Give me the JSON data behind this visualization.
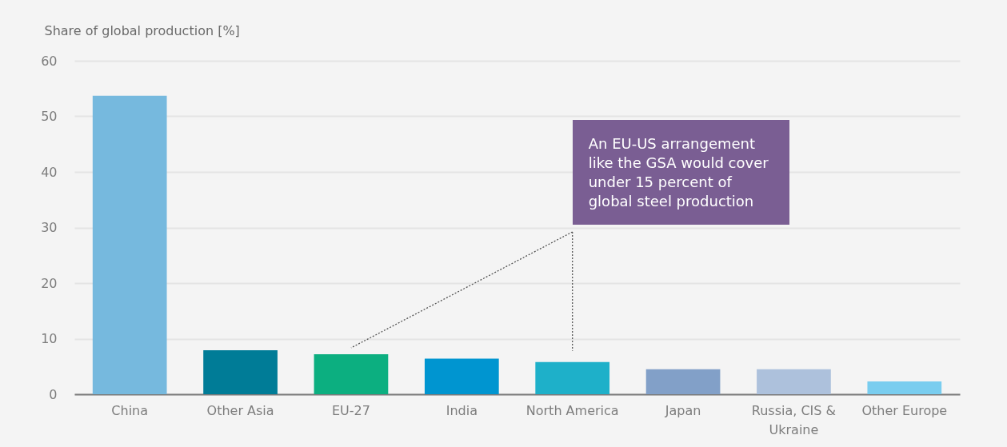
{
  "chart_data": {
    "type": "bar",
    "ylabel": "Share of global production [%]",
    "categories": [
      "China",
      "Other Asia",
      "EU-27",
      "India",
      "North America",
      "Japan",
      "Russia, CIS & Ukraine",
      "Other Europe"
    ],
    "values": [
      53.7,
      7.9,
      7.2,
      6.4,
      5.8,
      4.5,
      4.5,
      2.3
    ],
    "colors": [
      "#76b9de",
      "#007c97",
      "#0caf80",
      "#0095d0",
      "#1eb0c9",
      "#82a0c8",
      "#adc1dc",
      "#79cdef"
    ],
    "ylim": [
      0,
      60
    ],
    "yticks": [
      0,
      10,
      20,
      30,
      40,
      50,
      60
    ],
    "grid": "y",
    "annotations": [
      "An EU-US arrangement\nlike the GSA would cover\nunder 15 percent of\nglobal steel production"
    ]
  }
}
